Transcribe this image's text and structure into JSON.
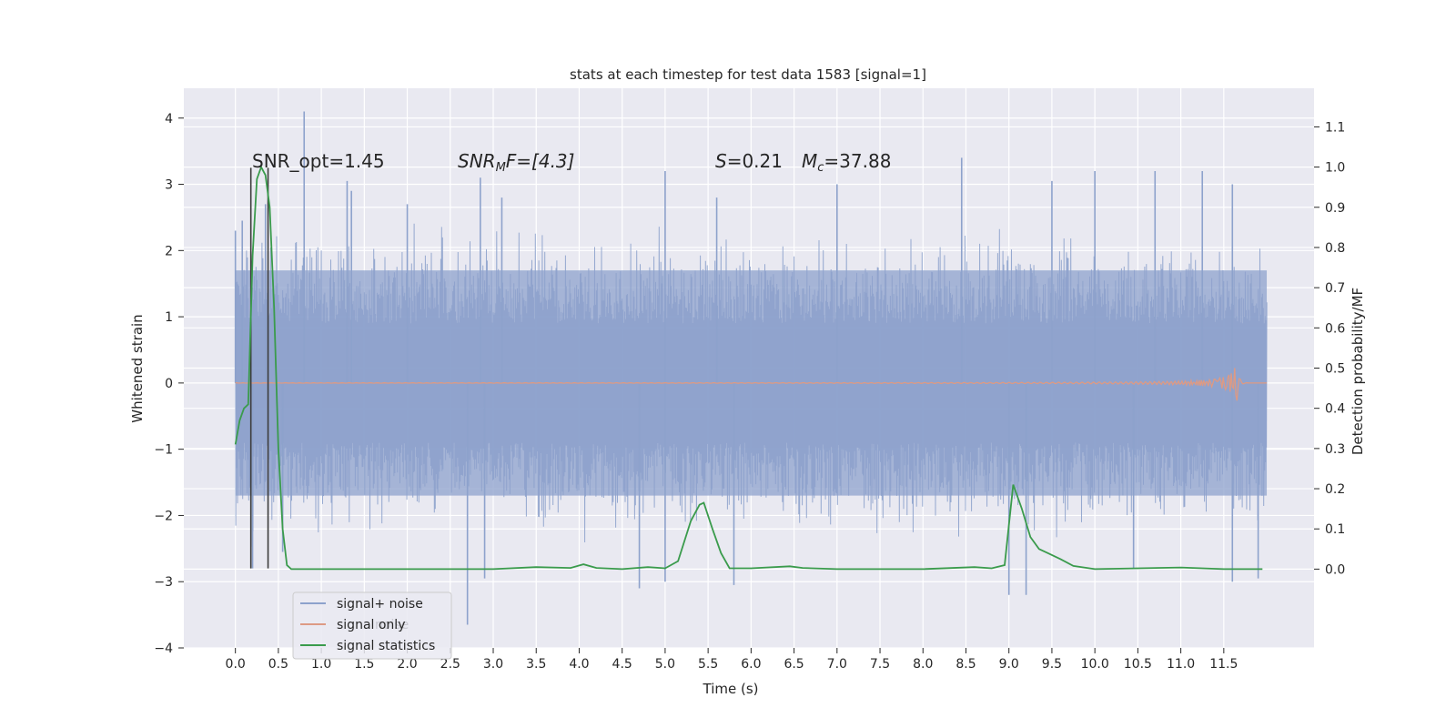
{
  "chart_data": {
    "type": "line",
    "title": "stats at each timestep for test data 1583 [signal=1]",
    "xlabel": "Time (s)",
    "ylabel_left": "Whitened strain",
    "ylabel_right": "Detection probability/MF",
    "xlim": [
      -0.6,
      12.55
    ],
    "ylim_left": [
      -4.0,
      4.45
    ],
    "ylim_right": [
      -0.196,
      1.196
    ],
    "x_ticks": [
      "0.0",
      "0.5",
      "1.0",
      "1.5",
      "2.0",
      "2.5",
      "3.0",
      "3.5",
      "4.0",
      "4.5",
      "5.0",
      "5.5",
      "6.0",
      "6.5",
      "7.0",
      "7.5",
      "8.0",
      "8.5",
      "9.0",
      "9.5",
      "10.0",
      "10.5",
      "11.0",
      "11.5"
    ],
    "y_left_ticks": [
      "4",
      "3",
      "2",
      "1",
      "0",
      "−1",
      "−2",
      "−3",
      "−4"
    ],
    "y_right_ticks": [
      "1.1",
      "1.0",
      "0.9",
      "0.8",
      "0.7",
      "0.6",
      "0.5",
      "0.4",
      "0.3",
      "0.2",
      "0.1",
      "0.0"
    ],
    "grid": true,
    "legend_position": "lower-left",
    "legend": [
      "signal+ noise",
      "signal only",
      "signal statistics"
    ],
    "legend_ghost": "noise",
    "annotations": {
      "snr_opt": "SNR_opt=1.45",
      "snr_mf_base": "SNR",
      "snr_mf_sub": "M",
      "snr_mf_rest": "F=[4.3]",
      "s_symbol": "S",
      "s_value": "=0.21",
      "mc_symbol": "M",
      "mc_sub": "c",
      "mc_value": "=37.88"
    },
    "vertical_lines_x": [
      0.18,
      0.38
    ],
    "series": [
      {
        "name": "signal+ noise",
        "color": "#8da2cc",
        "t_range": [
          0.0,
          12.0
        ],
        "envelope": [
          -1.7,
          1.7
        ],
        "spikes": [
          [
            0.0,
            2.3
          ],
          [
            0.08,
            2.45
          ],
          [
            0.35,
            2.7
          ],
          [
            0.8,
            4.1
          ],
          [
            1.3,
            3.05
          ],
          [
            1.35,
            2.9
          ],
          [
            2.0,
            2.7
          ],
          [
            2.85,
            3.1
          ],
          [
            3.1,
            2.8
          ],
          [
            5.0,
            3.2
          ],
          [
            5.6,
            2.8
          ],
          [
            7.0,
            3.0
          ],
          [
            8.45,
            3.4
          ],
          [
            9.5,
            3.05
          ],
          [
            10.0,
            3.2
          ],
          [
            10.7,
            3.2
          ],
          [
            11.25,
            3.2
          ],
          [
            11.6,
            3.0
          ],
          [
            0.2,
            -2.8
          ],
          [
            0.55,
            -2.55
          ],
          [
            2.9,
            -2.95
          ],
          [
            2.7,
            -3.65
          ],
          [
            4.7,
            -3.1
          ],
          [
            5.0,
            -3.0
          ],
          [
            5.8,
            -3.05
          ],
          [
            9.0,
            -3.2
          ],
          [
            9.2,
            -3.2
          ],
          [
            10.45,
            -2.8
          ],
          [
            11.6,
            -3.0
          ],
          [
            11.9,
            -2.95
          ]
        ]
      },
      {
        "name": "signal only",
        "color": "#dd9a84",
        "t_range": [
          0.0,
          12.0
        ],
        "chirp_peak_t": 11.65,
        "chirp_peak_amp": 0.32
      },
      {
        "name": "signal statistics",
        "color": "#3a9b4c",
        "axis": "right",
        "x": [
          0.0,
          0.05,
          0.1,
          0.15,
          0.2,
          0.25,
          0.3,
          0.35,
          0.4,
          0.45,
          0.5,
          0.55,
          0.6,
          0.65,
          0.7,
          1.0,
          2.0,
          3.0,
          3.5,
          3.9,
          4.05,
          4.2,
          4.5,
          4.8,
          5.0,
          5.15,
          5.3,
          5.4,
          5.45,
          5.55,
          5.65,
          5.75,
          6.0,
          6.45,
          6.6,
          7.0,
          8.0,
          8.6,
          8.8,
          8.95,
          9.05,
          9.15,
          9.25,
          9.35,
          9.45,
          9.6,
          9.75,
          10.0,
          11.0,
          11.5,
          11.95
        ],
        "y": [
          0.31,
          0.37,
          0.4,
          0.41,
          0.78,
          0.97,
          1.0,
          0.98,
          0.9,
          0.65,
          0.3,
          0.1,
          0.01,
          0.0,
          0.0,
          0.0,
          0.0,
          0.0,
          0.005,
          0.003,
          0.012,
          0.003,
          0.0,
          0.005,
          0.002,
          0.02,
          0.12,
          0.16,
          0.165,
          0.1,
          0.04,
          0.002,
          0.002,
          0.007,
          0.003,
          0.0,
          0.0,
          0.005,
          0.002,
          0.01,
          0.21,
          0.15,
          0.08,
          0.05,
          0.04,
          0.025,
          0.008,
          0.0,
          0.004,
          0.0,
          0.0
        ]
      }
    ]
  }
}
